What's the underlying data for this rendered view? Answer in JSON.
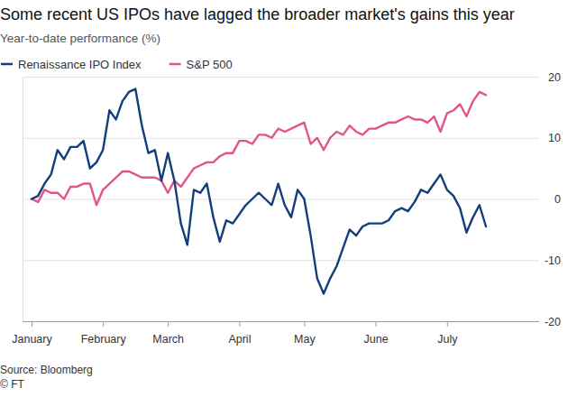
{
  "chart_data": {
    "type": "line",
    "title": "Some recent US IPOs have lagged the broader market's gains this year",
    "subtitle": "Year-to-date performance (%)",
    "source": "Source: Bloomberg",
    "credit": "© FT",
    "categories": [
      "January",
      null,
      null,
      null,
      null,
      null,
      null,
      null,
      null,
      null,
      null,
      "February",
      null,
      null,
      null,
      null,
      null,
      null,
      null,
      null,
      null,
      "March",
      null,
      null,
      null,
      null,
      null,
      null,
      null,
      null,
      null,
      null,
      "April",
      null,
      null,
      null,
      null,
      null,
      null,
      null,
      null,
      null,
      "May",
      null,
      null,
      null,
      null,
      null,
      null,
      null,
      null,
      null,
      null,
      "June",
      null,
      null,
      null,
      null,
      null,
      null,
      null,
      null,
      null,
      null,
      "July",
      null,
      null,
      null,
      null,
      null,
      null
    ],
    "series": [
      {
        "name": "Renaissance IPO Index",
        "color": "#123f7c",
        "values": [
          0,
          0.5,
          2.5,
          4,
          8,
          6.5,
          8.5,
          8.5,
          9.5,
          5,
          6,
          8,
          14.5,
          13,
          16,
          17.5,
          18,
          12,
          7.5,
          8,
          3,
          7.5,
          3,
          -4,
          -7.5,
          1.5,
          1,
          2.5,
          -3,
          -7,
          -3.5,
          -4,
          -2.5,
          -1,
          0,
          1,
          0,
          -1,
          2.5,
          -1,
          -3,
          1.5,
          0,
          -6,
          -13,
          -15.5,
          -13,
          -11,
          -8,
          -5,
          -6,
          -4.5,
          -4,
          -4,
          -4,
          -3.5,
          -2,
          -1.5,
          -2,
          -0.5,
          1.5,
          1,
          2.5,
          4,
          1.5,
          0.5,
          -1.5,
          -5.5,
          -3,
          -1,
          -4.5
        ]
      },
      {
        "name": "S&P 500",
        "color": "#e3538c",
        "values": [
          0,
          -0.5,
          1.5,
          1,
          1,
          0,
          2,
          2,
          2.5,
          2.5,
          -1,
          1.5,
          2.5,
          3.5,
          4.5,
          4.5,
          4,
          3.5,
          3.5,
          3.5,
          3,
          1,
          3,
          2,
          3.5,
          5,
          5.5,
          6,
          6,
          7,
          7.5,
          7.5,
          9.5,
          9.5,
          9,
          10.5,
          10.5,
          10,
          11.5,
          11,
          11.5,
          12,
          12.5,
          9,
          10,
          8,
          10,
          11,
          10.5,
          12,
          11,
          10.5,
          11.5,
          11.5,
          12,
          12.5,
          12.5,
          13,
          13.5,
          13,
          13,
          12.5,
          13.5,
          11,
          14,
          14.5,
          15.5,
          13.5,
          16,
          17.5,
          17
        ]
      }
    ],
    "ylim": [
      -20,
      20
    ],
    "yticks": [
      -20,
      -10,
      0,
      10,
      20
    ],
    "grid": true,
    "legend": "top-left"
  }
}
